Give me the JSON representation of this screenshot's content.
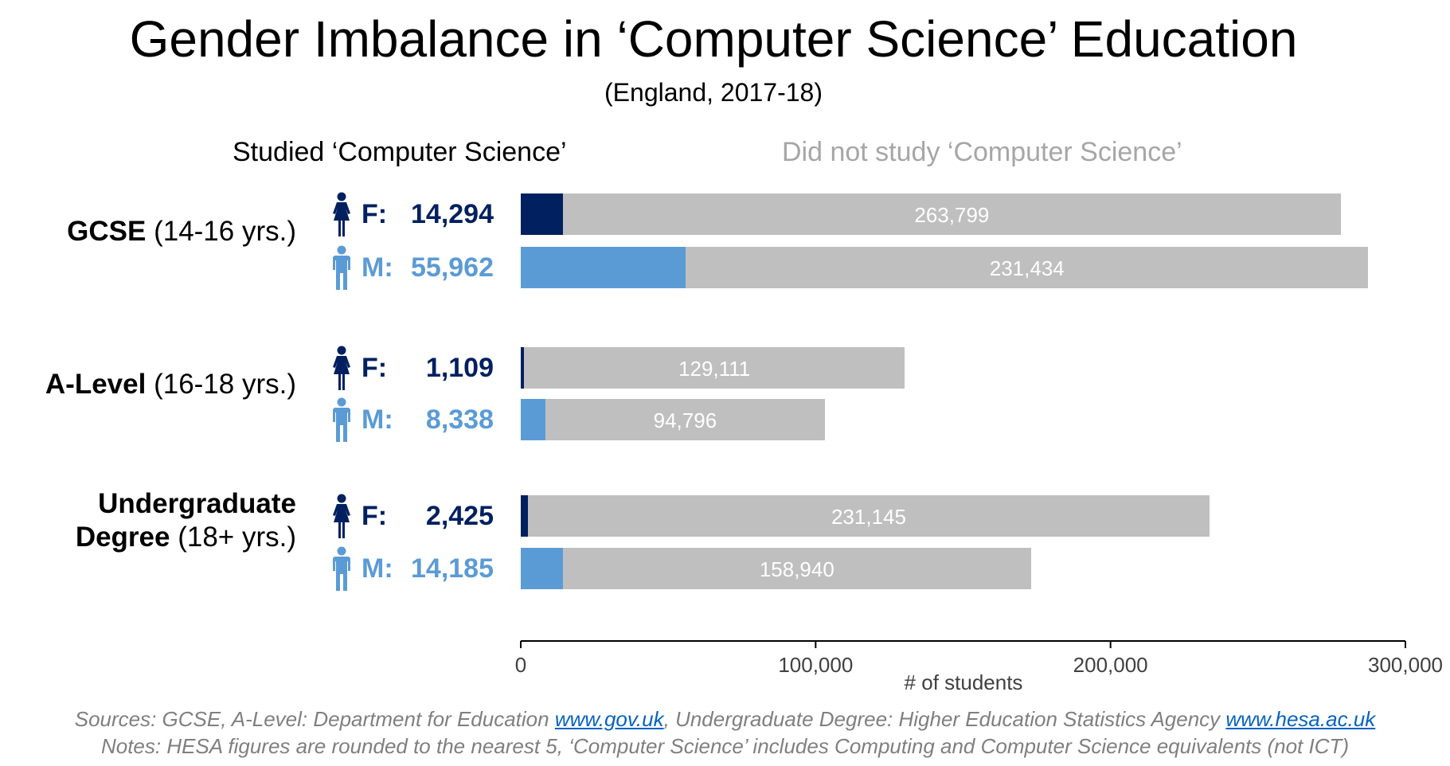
{
  "chart_data": {
    "type": "bar",
    "orientation": "horizontal-stacked",
    "title": "Gender Imbalance in ‘Computer Science’ Education",
    "subtitle": "(England, 2017-18)",
    "xlabel": "# of students",
    "xlim": [
      0,
      300000
    ],
    "xticks": [
      0,
      100000,
      200000,
      300000
    ],
    "xtick_labels": [
      "0",
      "100,000",
      "200,000",
      "300,000"
    ],
    "series_labels": {
      "studied": "Studied ‘Computer Science’",
      "not_studied": "Did not study ‘Computer Science’"
    },
    "groups": [
      {
        "name_bold": "GCSE",
        "name_rest": " (14-16 yrs.)",
        "name_bold2": "",
        "rows": [
          {
            "gender": "F:",
            "studied": 14294,
            "studied_label": "14,294",
            "not_studied": 263799,
            "not_studied_label": "263,799"
          },
          {
            "gender": "M:",
            "studied": 55962,
            "studied_label": "55,962",
            "not_studied": 231434,
            "not_studied_label": "231,434"
          }
        ]
      },
      {
        "name_bold": "A-Level",
        "name_rest": " (16-18 yrs.)",
        "name_bold2": "",
        "rows": [
          {
            "gender": "F:",
            "studied": 1109,
            "studied_label": "1,109",
            "not_studied": 129111,
            "not_studied_label": "129,111"
          },
          {
            "gender": "M:",
            "studied": 8338,
            "studied_label": "8,338",
            "not_studied": 94796,
            "not_studied_label": "94,796"
          }
        ]
      },
      {
        "name_bold": "Undergraduate",
        "name_bold2": "Degree",
        "name_rest": " (18+ yrs.)",
        "rows": [
          {
            "gender": "F:",
            "studied": 2425,
            "studied_label": "2,425",
            "not_studied": 231145,
            "not_studied_label": "231,145"
          },
          {
            "gender": "M:",
            "studied": 14185,
            "studied_label": "14,185",
            "not_studied": 158940,
            "not_studied_label": "158,940"
          }
        ]
      }
    ],
    "colors": {
      "female": "#002060",
      "male": "#5b9bd5",
      "not_studied": "#bfbfbf"
    }
  },
  "footer": {
    "sources_prefix": "Sources: GCSE, A-Level: Department for Education ",
    "link1": "www.gov.uk",
    "sources_mid": ", Undergraduate Degree: Higher Education Statistics Agency ",
    "link2": "www.hesa.ac.uk",
    "notes": "Notes: HESA figures are rounded to the nearest 5, ‘Computer Science’ includes Computing and Computer Science equivalents (not ICT)"
  }
}
